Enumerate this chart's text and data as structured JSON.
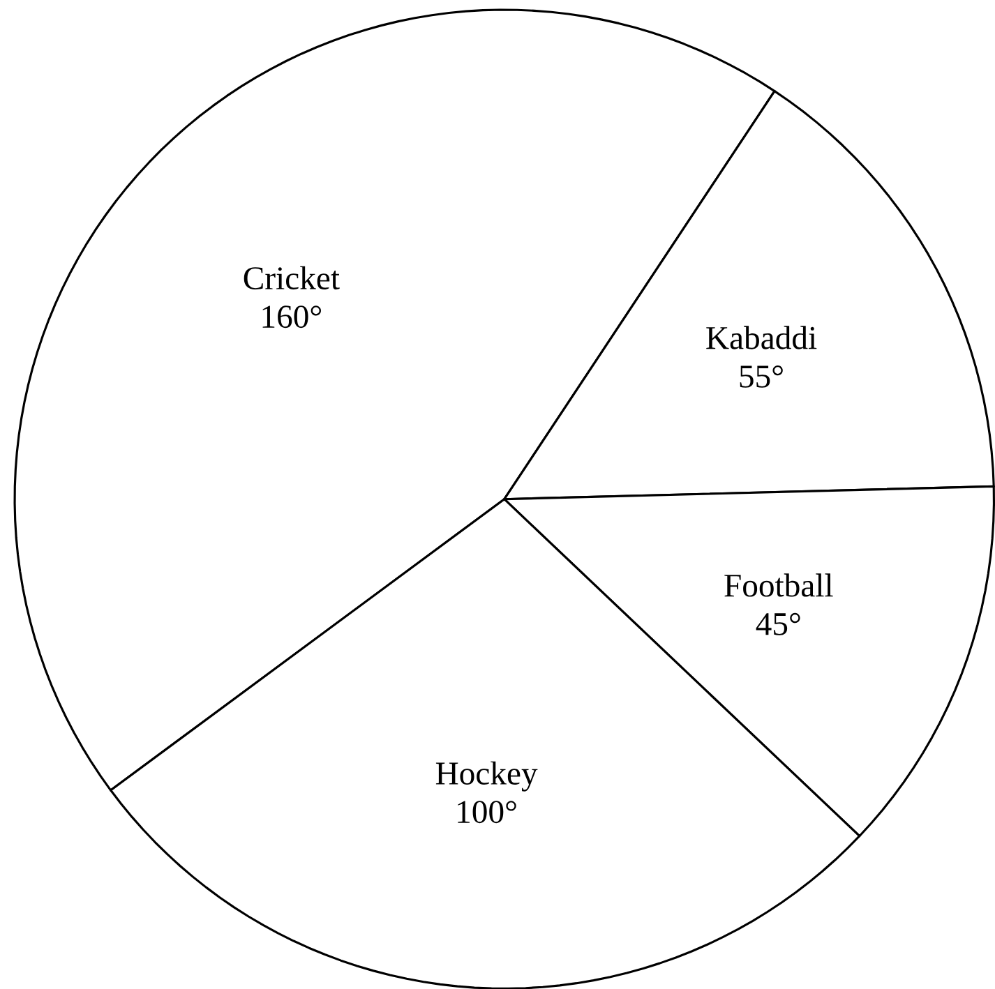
{
  "chart_data": {
    "type": "pie",
    "categories": [
      "Cricket",
      "Kabaddi",
      "Football",
      "Hockey"
    ],
    "values": [
      160,
      55,
      45,
      100
    ],
    "value_labels": [
      "160°",
      "55°",
      "45°",
      "100°"
    ],
    "colors": [
      "#ffffff",
      "#ffffff",
      "#ffffff",
      "#ffffff"
    ]
  }
}
